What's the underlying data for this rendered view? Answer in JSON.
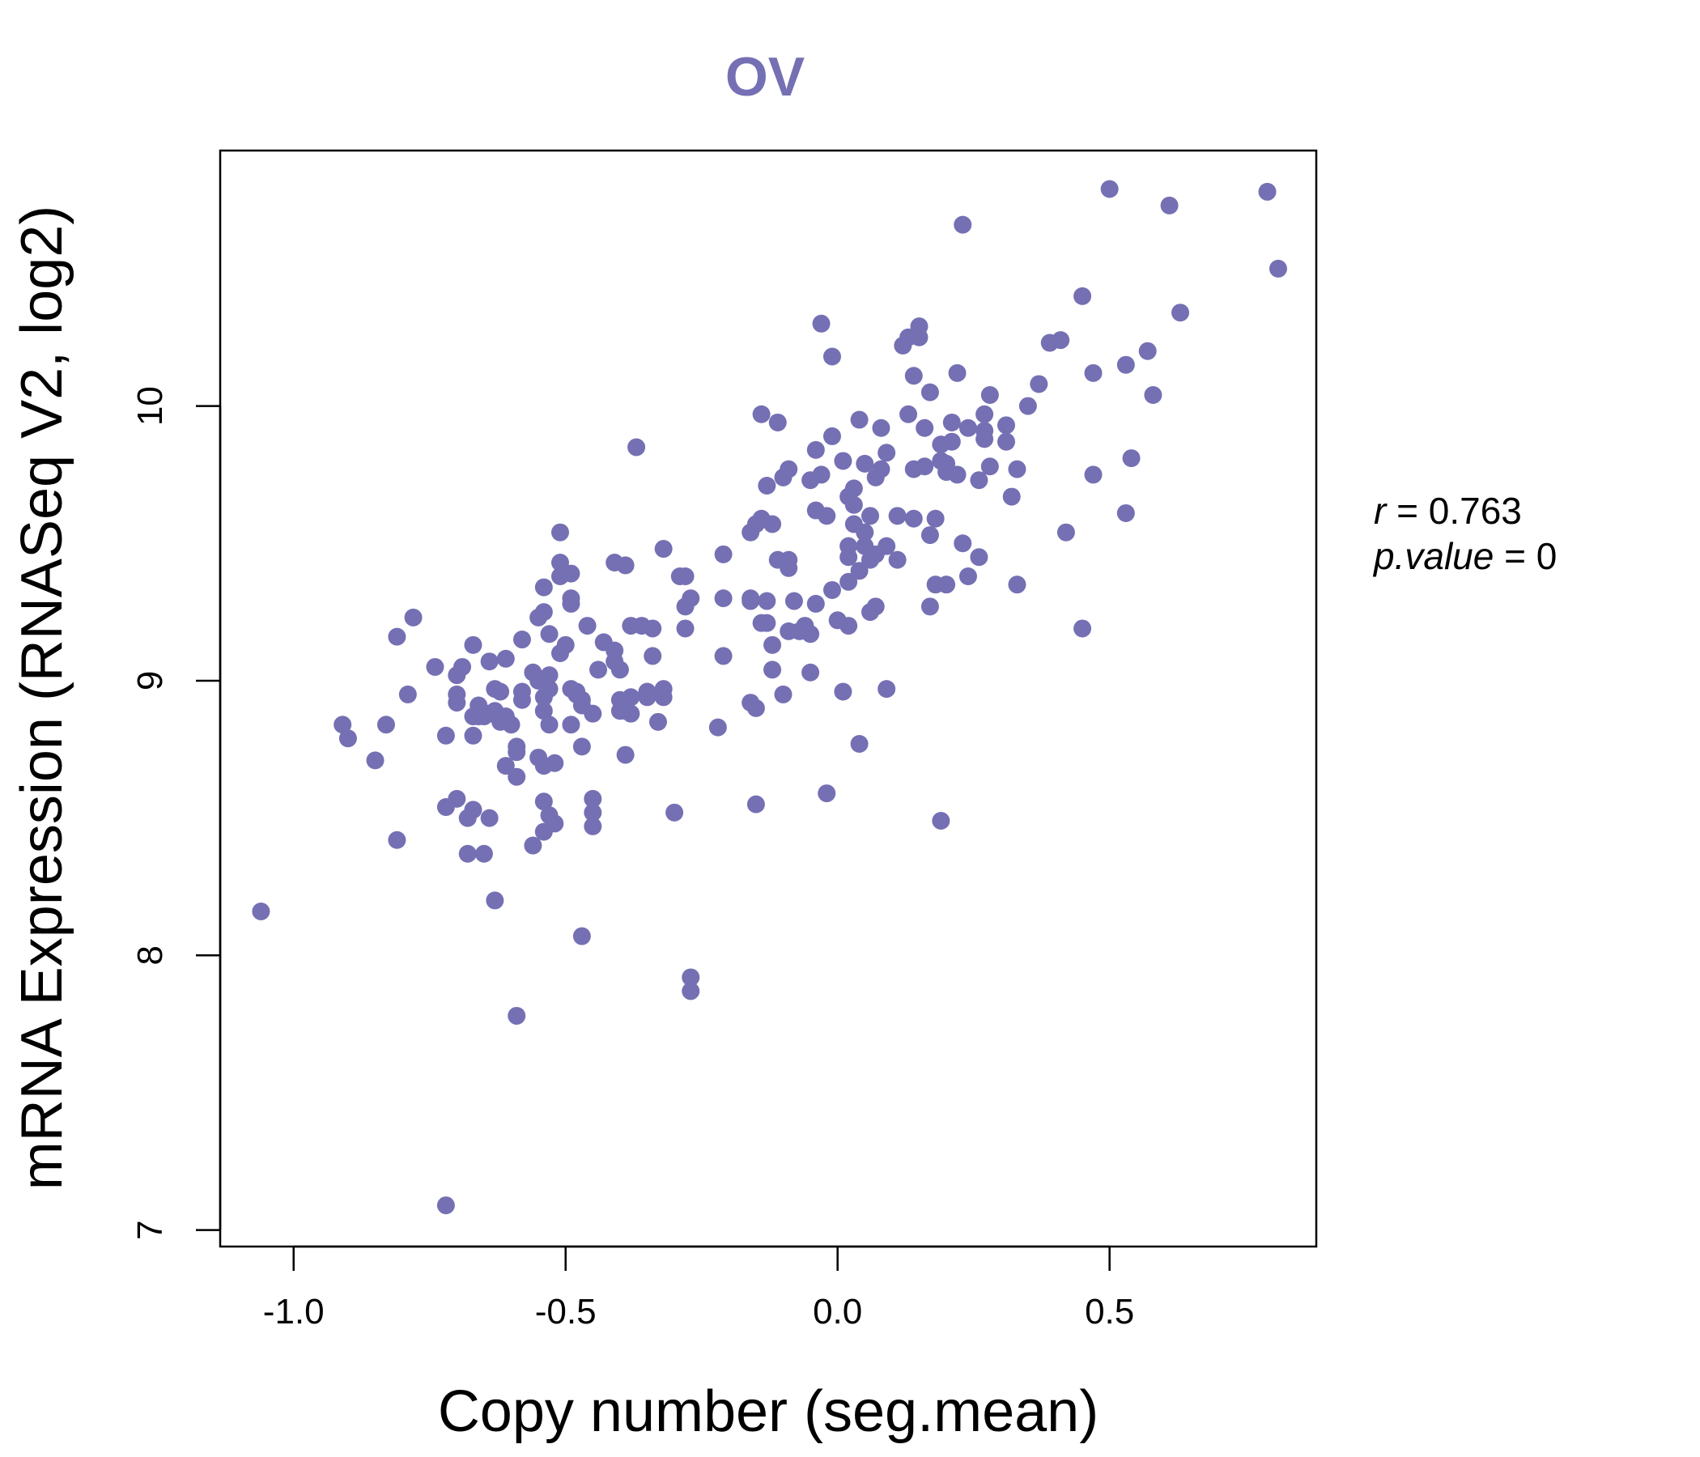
{
  "chart_data": {
    "type": "scatter",
    "title": "OV",
    "xlabel": "Copy number (seg.mean)",
    "ylabel": "mRNA Expression (RNASeq V2, log2)",
    "xlim": [
      -1.135,
      0.88
    ],
    "ylim": [
      6.94,
      10.93
    ],
    "x_ticks": [
      -1.0,
      -0.5,
      0.0,
      0.5
    ],
    "x_tick_labels": [
      "-1.0",
      "-0.5",
      "0.0",
      "0.5"
    ],
    "y_ticks": [
      7,
      8,
      9,
      10
    ],
    "y_tick_labels": [
      "7",
      "8",
      "9",
      "10"
    ],
    "grid": false,
    "color": "#7570b3",
    "stats": {
      "r_label": "r",
      "r_value": "0.763",
      "p_label": "p.value",
      "p_value": "0"
    },
    "points": [
      [
        -1.06,
        8.16
      ],
      [
        -0.91,
        8.84
      ],
      [
        -0.9,
        8.79
      ],
      [
        -0.85,
        8.71
      ],
      [
        -0.83,
        8.84
      ],
      [
        -0.81,
        9.16
      ],
      [
        -0.81,
        8.42
      ],
      [
        -0.79,
        8.95
      ],
      [
        -0.78,
        9.23
      ],
      [
        -0.74,
        9.05
      ],
      [
        -0.72,
        8.8
      ],
      [
        -0.72,
        8.54
      ],
      [
        -0.72,
        7.09
      ],
      [
        -0.7,
        8.57
      ],
      [
        -0.7,
        8.92
      ],
      [
        -0.7,
        8.95
      ],
      [
        -0.7,
        9.02
      ],
      [
        -0.69,
        9.05
      ],
      [
        -0.68,
        8.5
      ],
      [
        -0.68,
        8.37
      ],
      [
        -0.67,
        8.53
      ],
      [
        -0.67,
        8.8
      ],
      [
        -0.67,
        8.87
      ],
      [
        -0.67,
        9.13
      ],
      [
        -0.66,
        8.87
      ],
      [
        -0.66,
        8.91
      ],
      [
        -0.65,
        8.87
      ],
      [
        -0.65,
        8.37
      ],
      [
        -0.64,
        8.5
      ],
      [
        -0.64,
        8.88
      ],
      [
        -0.64,
        9.07
      ],
      [
        -0.63,
        8.2
      ],
      [
        -0.63,
        8.97
      ],
      [
        -0.63,
        8.89
      ],
      [
        -0.62,
        8.85
      ],
      [
        -0.62,
        8.96
      ],
      [
        -0.61,
        8.69
      ],
      [
        -0.61,
        8.87
      ],
      [
        -0.61,
        9.08
      ],
      [
        -0.6,
        8.84
      ],
      [
        -0.59,
        8.76
      ],
      [
        -0.59,
        8.74
      ],
      [
        -0.59,
        8.65
      ],
      [
        -0.59,
        7.78
      ],
      [
        -0.58,
        8.93
      ],
      [
        -0.58,
        8.96
      ],
      [
        -0.58,
        9.15
      ],
      [
        -0.56,
        8.4
      ],
      [
        -0.56,
        9.03
      ],
      [
        -0.55,
        9.23
      ],
      [
        -0.55,
        8.72
      ],
      [
        -0.55,
        9.0
      ],
      [
        -0.54,
        8.69
      ],
      [
        -0.54,
        8.56
      ],
      [
        -0.54,
        8.45
      ],
      [
        -0.54,
        8.89
      ],
      [
        -0.54,
        8.94
      ],
      [
        -0.54,
        9.25
      ],
      [
        -0.54,
        9.34
      ],
      [
        -0.53,
        8.51
      ],
      [
        -0.53,
        9.02
      ],
      [
        -0.53,
        9.17
      ],
      [
        -0.53,
        8.84
      ],
      [
        -0.53,
        8.97
      ],
      [
        -0.52,
        8.48
      ],
      [
        -0.52,
        8.7
      ],
      [
        -0.51,
        9.1
      ],
      [
        -0.51,
        9.43
      ],
      [
        -0.51,
        9.38
      ],
      [
        -0.51,
        9.54
      ],
      [
        -0.5,
        9.13
      ],
      [
        -0.49,
        8.84
      ],
      [
        -0.49,
        8.97
      ],
      [
        -0.49,
        9.28
      ],
      [
        -0.49,
        9.3
      ],
      [
        -0.49,
        9.39
      ],
      [
        -0.48,
        8.96
      ],
      [
        -0.48,
        8.95
      ],
      [
        -0.47,
        8.07
      ],
      [
        -0.47,
        8.91
      ],
      [
        -0.47,
        8.93
      ],
      [
        -0.47,
        8.76
      ],
      [
        -0.46,
        9.2
      ],
      [
        -0.45,
        8.52
      ],
      [
        -0.45,
        8.47
      ],
      [
        -0.45,
        8.57
      ],
      [
        -0.45,
        8.88
      ],
      [
        -0.44,
        9.04
      ],
      [
        -0.43,
        9.14
      ],
      [
        -0.41,
        9.11
      ],
      [
        -0.41,
        9.43
      ],
      [
        -0.41,
        9.07
      ],
      [
        -0.4,
        8.93
      ],
      [
        -0.4,
        8.89
      ],
      [
        -0.4,
        9.04
      ],
      [
        -0.39,
        8.73
      ],
      [
        -0.39,
        9.42
      ],
      [
        -0.39,
        8.89
      ],
      [
        -0.38,
        8.94
      ],
      [
        -0.38,
        8.88
      ],
      [
        -0.38,
        9.2
      ],
      [
        -0.37,
        9.85
      ],
      [
        -0.36,
        9.2
      ],
      [
        -0.35,
        8.96
      ],
      [
        -0.35,
        8.94
      ],
      [
        -0.34,
        9.09
      ],
      [
        -0.34,
        9.19
      ],
      [
        -0.33,
        8.85
      ],
      [
        -0.32,
        9.48
      ],
      [
        -0.32,
        8.97
      ],
      [
        -0.32,
        8.94
      ],
      [
        -0.3,
        8.52
      ],
      [
        -0.29,
        9.38
      ],
      [
        -0.28,
        9.27
      ],
      [
        -0.28,
        9.38
      ],
      [
        -0.28,
        9.19
      ],
      [
        -0.27,
        7.87
      ],
      [
        -0.27,
        7.92
      ],
      [
        -0.27,
        9.3
      ],
      [
        -0.22,
        8.83
      ],
      [
        -0.21,
        9.46
      ],
      [
        -0.21,
        9.3
      ],
      [
        -0.21,
        9.09
      ],
      [
        -0.16,
        9.54
      ],
      [
        -0.16,
        9.3
      ],
      [
        -0.16,
        9.29
      ],
      [
        -0.16,
        8.92
      ],
      [
        -0.15,
        8.9
      ],
      [
        -0.15,
        8.55
      ],
      [
        -0.15,
        9.57
      ],
      [
        -0.14,
        9.59
      ],
      [
        -0.14,
        9.21
      ],
      [
        -0.14,
        9.97
      ],
      [
        -0.13,
        9.21
      ],
      [
        -0.13,
        9.29
      ],
      [
        -0.13,
        9.71
      ],
      [
        -0.12,
        9.04
      ],
      [
        -0.12,
        9.57
      ],
      [
        -0.12,
        9.13
      ],
      [
        -0.11,
        9.94
      ],
      [
        -0.11,
        9.44
      ],
      [
        -0.1,
        9.74
      ],
      [
        -0.1,
        8.95
      ],
      [
        -0.09,
        9.41
      ],
      [
        -0.09,
        9.44
      ],
      [
        -0.09,
        9.18
      ],
      [
        -0.09,
        9.77
      ],
      [
        -0.08,
        9.29
      ],
      [
        -0.07,
        9.18
      ],
      [
        -0.06,
        9.2
      ],
      [
        -0.05,
        9.73
      ],
      [
        -0.05,
        9.03
      ],
      [
        -0.05,
        9.17
      ],
      [
        -0.04,
        9.28
      ],
      [
        -0.04,
        9.62
      ],
      [
        -0.04,
        9.84
      ],
      [
        -0.03,
        9.75
      ],
      [
        -0.03,
        10.3
      ],
      [
        -0.02,
        9.6
      ],
      [
        -0.02,
        8.59
      ],
      [
        -0.01,
        10.18
      ],
      [
        -0.01,
        9.33
      ],
      [
        -0.01,
        9.89
      ],
      [
        0.0,
        9.22
      ],
      [
        0.01,
        8.96
      ],
      [
        0.01,
        9.8
      ],
      [
        0.02,
        9.36
      ],
      [
        0.02,
        9.45
      ],
      [
        0.02,
        9.49
      ],
      [
        0.02,
        9.2
      ],
      [
        0.02,
        9.67
      ],
      [
        0.03,
        9.57
      ],
      [
        0.03,
        9.7
      ],
      [
        0.03,
        9.64
      ],
      [
        0.04,
        8.77
      ],
      [
        0.04,
        9.95
      ],
      [
        0.04,
        9.4
      ],
      [
        0.05,
        9.49
      ],
      [
        0.05,
        9.54
      ],
      [
        0.05,
        9.79
      ],
      [
        0.06,
        9.25
      ],
      [
        0.06,
        9.6
      ],
      [
        0.06,
        9.44
      ],
      [
        0.07,
        9.46
      ],
      [
        0.07,
        9.74
      ],
      [
        0.07,
        9.27
      ],
      [
        0.08,
        9.77
      ],
      [
        0.08,
        9.92
      ],
      [
        0.09,
        9.49
      ],
      [
        0.09,
        9.83
      ],
      [
        0.09,
        8.97
      ],
      [
        0.11,
        9.44
      ],
      [
        0.11,
        9.6
      ],
      [
        0.12,
        10.22
      ],
      [
        0.13,
        10.25
      ],
      [
        0.13,
        9.97
      ],
      [
        0.14,
        9.59
      ],
      [
        0.14,
        10.11
      ],
      [
        0.14,
        9.77
      ],
      [
        0.15,
        10.25
      ],
      [
        0.15,
        10.29
      ],
      [
        0.16,
        9.78
      ],
      [
        0.16,
        9.92
      ],
      [
        0.17,
        10.05
      ],
      [
        0.17,
        9.53
      ],
      [
        0.17,
        9.27
      ],
      [
        0.18,
        9.35
      ],
      [
        0.18,
        9.59
      ],
      [
        0.19,
        8.49
      ],
      [
        0.19,
        9.86
      ],
      [
        0.19,
        9.8
      ],
      [
        0.2,
        9.76
      ],
      [
        0.2,
        9.35
      ],
      [
        0.2,
        9.79
      ],
      [
        0.21,
        9.87
      ],
      [
        0.21,
        9.94
      ],
      [
        0.22,
        9.75
      ],
      [
        0.22,
        10.12
      ],
      [
        0.23,
        10.66
      ],
      [
        0.23,
        9.5
      ],
      [
        0.24,
        9.38
      ],
      [
        0.24,
        9.92
      ],
      [
        0.26,
        9.73
      ],
      [
        0.26,
        9.45
      ],
      [
        0.27,
        9.97
      ],
      [
        0.27,
        9.88
      ],
      [
        0.27,
        9.91
      ],
      [
        0.28,
        9.78
      ],
      [
        0.28,
        10.04
      ],
      [
        0.31,
        9.87
      ],
      [
        0.31,
        9.93
      ],
      [
        0.32,
        9.67
      ],
      [
        0.33,
        9.77
      ],
      [
        0.33,
        9.35
      ],
      [
        0.35,
        10.0
      ],
      [
        0.37,
        10.08
      ],
      [
        0.39,
        10.23
      ],
      [
        0.41,
        10.24
      ],
      [
        0.42,
        9.54
      ],
      [
        0.45,
        10.4
      ],
      [
        0.45,
        9.19
      ],
      [
        0.47,
        10.12
      ],
      [
        0.47,
        9.75
      ],
      [
        0.5,
        10.79
      ],
      [
        0.53,
        9.61
      ],
      [
        0.53,
        10.15
      ],
      [
        0.54,
        9.81
      ],
      [
        0.57,
        10.2
      ],
      [
        0.58,
        10.04
      ],
      [
        0.61,
        10.73
      ],
      [
        0.63,
        10.34
      ],
      [
        0.79,
        10.78
      ],
      [
        0.81,
        10.5
      ]
    ]
  }
}
